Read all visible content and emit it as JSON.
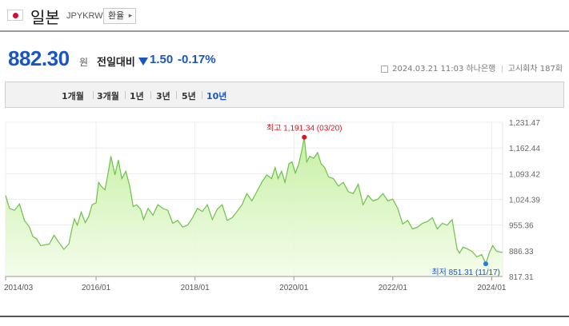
{
  "header": {
    "country_name": "일본",
    "currency_code": "JPYKRW",
    "exchange_button": "환율",
    "flag_icon": "japan-flag-icon",
    "chevron_icon": "chevron-right-icon"
  },
  "quote": {
    "price": "882.30",
    "unit": "원",
    "compare_label": "전일대비",
    "direction_icon": "down-triangle-icon",
    "change": "1.50",
    "change_pct": "-0.17%",
    "timestamp": "2024.03.21 11:03",
    "bank": "하나은행",
    "notice": "고시회차 187회",
    "accent_color": "#1a55c4"
  },
  "period_tabs": [
    {
      "label": "1개월",
      "active": false
    },
    {
      "label": "3개월",
      "active": false
    },
    {
      "label": "1년",
      "active": false
    },
    {
      "label": "3년",
      "active": false
    },
    {
      "label": "5년",
      "active": false
    },
    {
      "label": "10년",
      "active": true
    }
  ],
  "chart_data": {
    "type": "area",
    "y_ticks": [
      "1,231.47",
      "1,162.44",
      "1,093.42",
      "1,024.39",
      "955.36",
      "886.33",
      "817.31"
    ],
    "ylim": [
      817.31,
      1231.47
    ],
    "x_ticks": [
      "2014/03",
      "2016/01",
      "2018/01",
      "2020/01",
      "2022/01",
      "2024/01"
    ],
    "x_tick_years": [
      2014.17,
      2016.0,
      2018.0,
      2020.0,
      2022.0,
      2024.0
    ],
    "xlim": [
      2014.17,
      2024.22
    ],
    "max_label": "최고 1,191.34 (03/20)",
    "max_point": {
      "x": 2020.21,
      "y": 1191.34
    },
    "min_label": "최저 851.31 (11/17)",
    "min_point": {
      "x": 2023.88,
      "y": 851.31
    },
    "max_color": "#e0141e",
    "min_color": "#1a7ee0",
    "line_color": "#6cc24a",
    "series": [
      {
        "x": [
          2014.17,
          2014.25,
          2014.35,
          2014.45,
          2014.55,
          2014.65,
          2014.72,
          2014.8,
          2014.88,
          2014.96,
          2015.05,
          2015.15,
          2015.25,
          2015.35,
          2015.45,
          2015.5,
          2015.56,
          2015.62,
          2015.7,
          2015.78,
          2015.85,
          2015.92,
          2016.0,
          2016.05,
          2016.1,
          2016.18,
          2016.25,
          2016.3,
          2016.38,
          2016.45,
          2016.52,
          2016.6,
          2016.68,
          2016.75,
          2016.82,
          2016.9,
          2016.96,
          2017.05,
          2017.15,
          2017.25,
          2017.35,
          2017.45,
          2017.55,
          2017.65,
          2017.75,
          2017.85,
          2017.95,
          2018.05,
          2018.15,
          2018.25,
          2018.35,
          2018.45,
          2018.55,
          2018.65,
          2018.75,
          2018.85,
          2018.95,
          2019.05,
          2019.15,
          2019.25,
          2019.35,
          2019.45,
          2019.55,
          2019.62,
          2019.68,
          2019.75,
          2019.82,
          2019.9,
          2019.96,
          2020.03,
          2020.1,
          2020.16,
          2020.21,
          2020.26,
          2020.32,
          2020.4,
          2020.48,
          2020.55,
          2020.62,
          2020.7,
          2020.8,
          2020.9,
          2021.0,
          2021.1,
          2021.2,
          2021.3,
          2021.4,
          2021.5,
          2021.6,
          2021.7,
          2021.8,
          2021.9,
          2022.0,
          2022.1,
          2022.2,
          2022.3,
          2022.4,
          2022.5,
          2022.6,
          2022.7,
          2022.8,
          2022.9,
          2023.0,
          2023.1,
          2023.2,
          2023.3,
          2023.35,
          2023.42,
          2023.5,
          2023.6,
          2023.7,
          2023.8,
          2023.88,
          2023.95,
          2024.02,
          2024.1,
          2024.18,
          2024.22
        ],
        "y": [
          1035,
          1000,
          995,
          1012,
          968,
          950,
          925,
          918,
          900,
          902,
          904,
          928,
          908,
          890,
          905,
          938,
          972,
          955,
          990,
          962,
          978,
          1010,
          1015,
          1070,
          1060,
          1050,
          1100,
          1140,
          1090,
          1130,
          1080,
          1100,
          1060,
          1005,
          1010,
          998,
          970,
          1000,
          982,
          1010,
          1000,
          995,
          960,
          968,
          950,
          955,
          975,
          1000,
          992,
          1010,
          970,
          998,
          1010,
          968,
          975,
          992,
          1010,
          1040,
          1020,
          1045,
          1070,
          1090,
          1080,
          1110,
          1080,
          1100,
          1070,
          1120,
          1125,
          1095,
          1120,
          1155,
          1191.34,
          1125,
          1140,
          1135,
          1150,
          1120,
          1110,
          1085,
          1080,
          1060,
          1070,
          1045,
          1040,
          1065,
          1010,
          1035,
          1020,
          1025,
          1040,
          1020,
          1025,
          1000,
          958,
          968,
          945,
          950,
          960,
          965,
          975,
          945,
          960,
          955,
          970,
          890,
          880,
          896,
          892,
          885,
          870,
          876,
          851.31,
          880,
          900,
          885,
          882.3,
          882.3
        ]
      }
    ]
  }
}
